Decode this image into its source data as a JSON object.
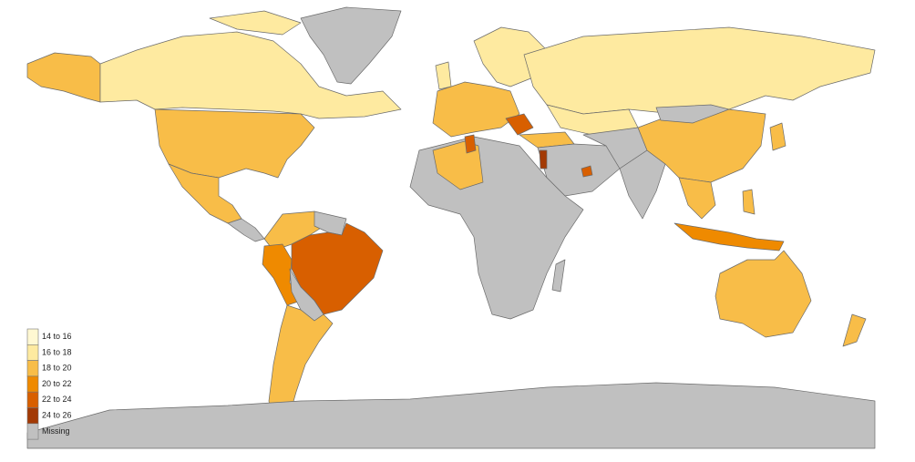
{
  "legend": {
    "items": [
      {
        "label": "14 to 16",
        "color": "#fff8d2"
      },
      {
        "label": "16 to 18",
        "color": "#feeaa0"
      },
      {
        "label": "18 to 20",
        "color": "#f8bd48"
      },
      {
        "label": "20 to 22",
        "color": "#ef8a00"
      },
      {
        "label": "22 to 24",
        "color": "#d85f00"
      },
      {
        "label": "24 to 26",
        "color": "#a33a05"
      },
      {
        "label": "Missing",
        "color": "#c0c0c0"
      }
    ]
  }
}
